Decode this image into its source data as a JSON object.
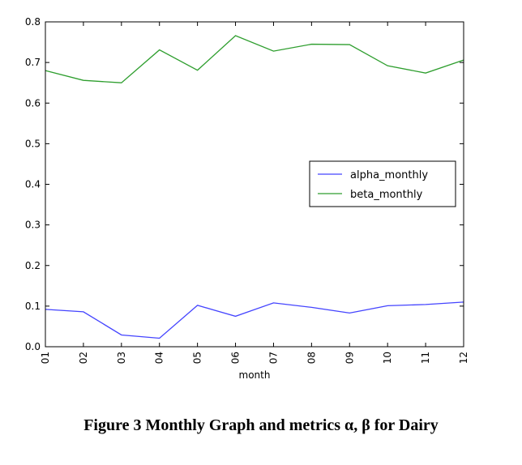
{
  "caption": "Figure 3 Monthly Graph and metrics α, β for Dairy",
  "chart_data": {
    "type": "line",
    "xlabel": "month",
    "ylabel": "",
    "categories": [
      "01",
      "02",
      "03",
      "04",
      "05",
      "06",
      "07",
      "08",
      "09",
      "10",
      "11",
      "12"
    ],
    "ylim": [
      0.0,
      0.8
    ],
    "yticks": [
      0.0,
      0.1,
      0.2,
      0.3,
      0.4,
      0.5,
      0.6,
      0.7,
      0.8
    ],
    "ytick_labels": [
      "0.0",
      "0.1",
      "0.2",
      "0.3",
      "0.4",
      "0.5",
      "0.6",
      "0.7",
      "0.8"
    ],
    "grid": false,
    "legend_position": "center-right",
    "series": [
      {
        "name": "alpha_monthly",
        "color": "#4444ff",
        "values": [
          0.092,
          0.086,
          0.029,
          0.021,
          0.102,
          0.075,
          0.108,
          0.097,
          0.083,
          0.101,
          0.104,
          0.11
        ]
      },
      {
        "name": "beta_monthly",
        "color": "#2e9e2e",
        "values": [
          0.68,
          0.656,
          0.65,
          0.731,
          0.681,
          0.766,
          0.728,
          0.745,
          0.744,
          0.692,
          0.674,
          0.706
        ]
      }
    ]
  }
}
